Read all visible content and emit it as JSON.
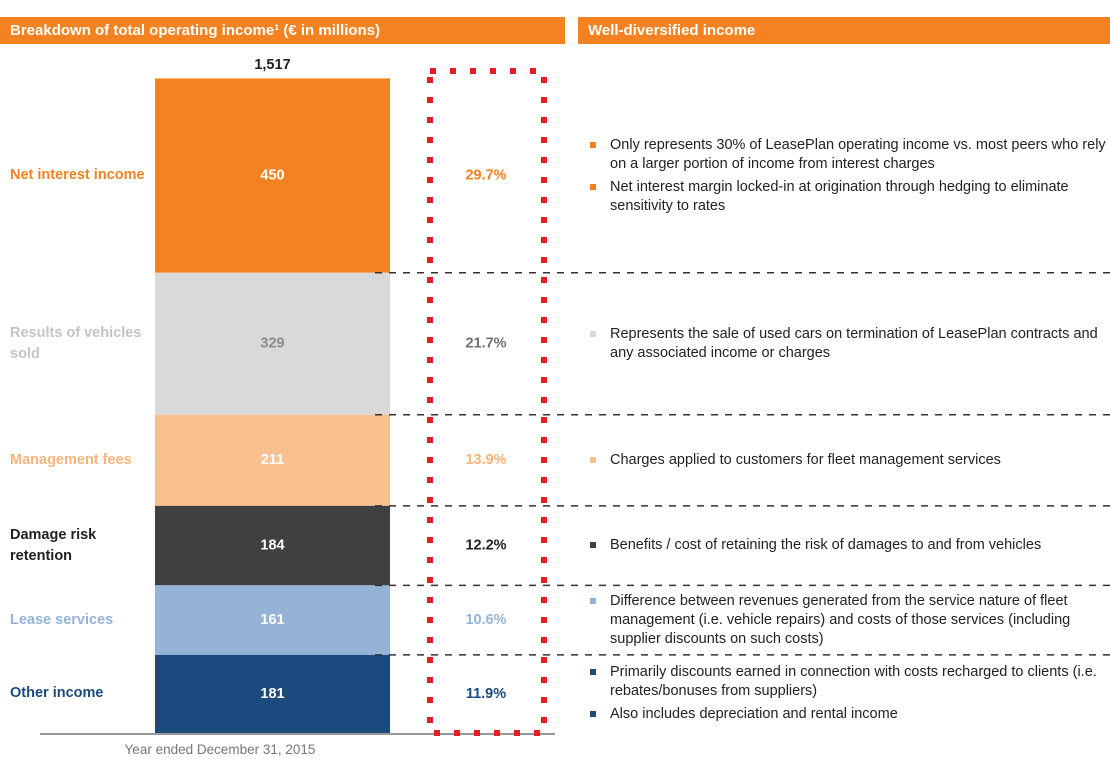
{
  "left_header": "Breakdown of total operating income¹ (€ in millions)",
  "right_header": "Well-diversified income",
  "chart_data": {
    "type": "bar",
    "stacked": true,
    "categories": [
      "Year ended December 31, 2015"
    ],
    "ylim": [
      0,
      1517
    ],
    "total": {
      "value": 1517,
      "label": "1,517"
    },
    "series": [
      {
        "name": "Net interest income",
        "color": "#f58220",
        "label_color": "#f58220",
        "value_color": "#ffffff",
        "values": [
          450
        ],
        "percent_values": [
          29.7
        ],
        "percent_labels": [
          "29.7%"
        ],
        "notes": [
          "Only represents 30% of LeasePlan operating income vs. most peers who rely on a larger portion of income from interest charges",
          "Net interest margin locked-in at origination through hedging to eliminate sensitivity to rates"
        ]
      },
      {
        "name": "Results of vehicles sold",
        "color": "#d9d9d9",
        "label_color": "#c4c4c4",
        "value_color": "#8c8c8c",
        "percent_color": "#707070",
        "values": [
          329
        ],
        "percent_values": [
          21.7
        ],
        "percent_labels": [
          "21.7%"
        ],
        "notes": [
          "Represents the sale of used cars on termination of LeasePlan contracts and any associated income or charges"
        ]
      },
      {
        "name": "Management fees",
        "color": "#f9c08f",
        "label_color": "#f9b47a",
        "value_color": "#ffffff",
        "values": [
          211
        ],
        "percent_values": [
          13.9
        ],
        "percent_labels": [
          "13.9%"
        ],
        "notes": [
          "Charges applied to customers for fleet management services"
        ]
      },
      {
        "name": "Damage risk retention",
        "color": "#404040",
        "label_color": "#222222",
        "value_color": "#ffffff",
        "values": [
          184
        ],
        "percent_values": [
          12.2
        ],
        "percent_labels": [
          "12.2%"
        ],
        "notes": [
          "Benefits / cost of retaining the risk of damages to and from vehicles"
        ]
      },
      {
        "name": "Lease services",
        "color": "#95b3d7",
        "label_color": "#95b3d7",
        "value_color": "#ffffff",
        "values": [
          161
        ],
        "percent_values": [
          10.6
        ],
        "percent_labels": [
          "10.6%"
        ],
        "notes": [
          "Difference between revenues generated from the service nature of fleet management (i.e. vehicle repairs) and costs of those services (including supplier discounts on such costs)"
        ]
      },
      {
        "name": "Other income",
        "color": "#1b4a7e",
        "label_color": "#1b4a7e",
        "value_color": "#ffffff",
        "values": [
          181
        ],
        "percent_values": [
          11.9
        ],
        "percent_labels": [
          "11.9%"
        ],
        "notes": [
          "Primarily discounts earned in connection with costs recharged to clients (i.e. rebates/bonuses from suppliers)",
          "Also includes depreciation and rental income"
        ]
      }
    ]
  }
}
